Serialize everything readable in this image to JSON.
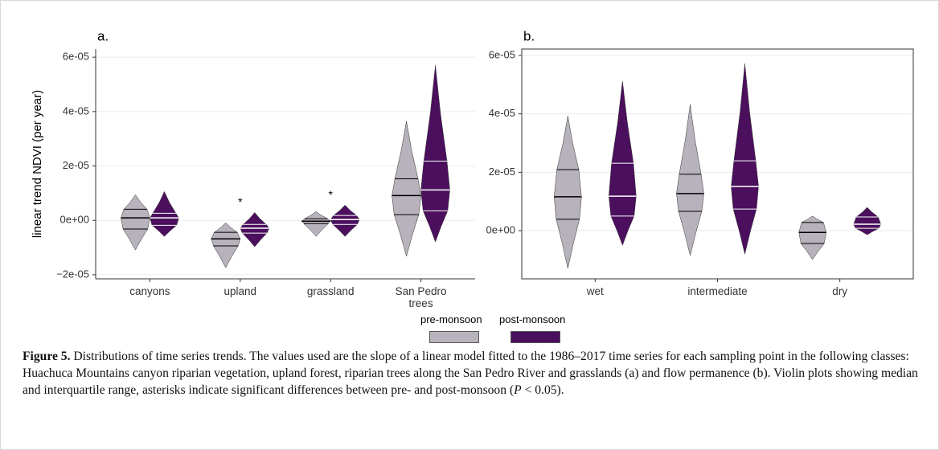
{
  "chart_data": [
    {
      "type": "violin",
      "label": "a.",
      "ylabel": "linear trend NDVI (per year)",
      "categories": [
        "canyons",
        "upland",
        "grassland",
        "San Pedro\ntrees"
      ],
      "series": [
        {
          "name": "pre-monsoon",
          "color": "#b7b2bb",
          "line_color": "#000000",
          "min": [
            -1.09e-05,
            -1.74e-05,
            -5.9e-06,
            -1.32e-05
          ],
          "q1": [
            -3.2e-06,
            -9.4e-06,
            -1.2e-06,
            2.1e-06
          ],
          "median": [
            9e-07,
            -6.8e-06,
            -3e-07,
            9.1e-06
          ],
          "q3": [
            4.1e-06,
            -4.4e-06,
            6e-07,
            1.53e-05
          ],
          "max": [
            9.4e-06,
            -9e-07,
            3.2e-06,
            3.65e-05
          ]
        },
        {
          "name": "post-monsoon",
          "color": "#4b0f5e",
          "line_color": "#ffffff",
          "min": [
            -5.9e-06,
            -9.7e-06,
            -5.9e-06,
            -7.9e-06
          ],
          "q1": [
            -1.8e-06,
            -4.7e-06,
            -1.5e-06,
            3.5e-06
          ],
          "median": [
            9e-07,
            -2.9e-06,
            3e-07,
            1.12e-05
          ],
          "q3": [
            2.6e-06,
            -1.5e-06,
            1.8e-06,
            2.18e-05
          ],
          "max": [
            1.06e-05,
            2.9e-06,
            5.6e-06,
            5.7e-05
          ]
        }
      ],
      "annotations": [
        {
          "text": "*",
          "category": "upland"
        },
        {
          "text": "*",
          "category": "grassland"
        }
      ],
      "ylim": [
        -2.15e-05,
        6.3e-05
      ],
      "yticks": [
        {
          "value": -2e-05,
          "label": "−2e-05"
        },
        {
          "value": 0,
          "label": "0e+00"
        },
        {
          "value": 2e-05,
          "label": "2e-05"
        },
        {
          "value": 4e-05,
          "label": "4e-05"
        },
        {
          "value": 6e-05,
          "label": "6e-05"
        }
      ],
      "grid": true,
      "frame": false
    },
    {
      "type": "violin",
      "label": "b.",
      "categories": [
        "wet",
        "intermediate",
        "dry"
      ],
      "series": [
        {
          "name": "pre-monsoon",
          "color": "#b7b2bb",
          "line_color": "#000000",
          "min": [
            -1.29e-05,
            -8.5e-06,
            -9.9e-06
          ],
          "q1": [
            3.9e-06,
            6.6e-06,
            -4.4e-06
          ],
          "median": [
            1.16e-05,
            1.27e-05,
            -6e-07
          ],
          "q3": [
            2.09e-05,
            1.93e-05,
            2.8e-06
          ],
          "max": [
            3.93e-05,
            4.32e-05,
            5e-06
          ]
        },
        {
          "name": "post-monsoon",
          "color": "#4b0f5e",
          "line_color": "#ffffff",
          "min": [
            -5e-06,
            -8e-06,
            -1.4e-06
          ],
          "q1": [
            5e-06,
            7.4e-06,
            8e-07
          ],
          "median": [
            1.18e-05,
            1.51e-05,
            2.2e-06
          ],
          "q3": [
            2.31e-05,
            2.39e-05,
            4.7e-06
          ],
          "max": [
            5.12e-05,
            5.72e-05,
            8e-06
          ]
        }
      ],
      "ylim": [
        -1.65e-05,
        6.22e-05
      ],
      "yticks": [
        {
          "value": 0,
          "label": "0e+00"
        },
        {
          "value": 2e-05,
          "label": "2e-05"
        },
        {
          "value": 4e-05,
          "label": "4e-05"
        },
        {
          "value": 6e-05,
          "label": "6e-05"
        }
      ],
      "grid": true,
      "frame": true
    }
  ],
  "caption": {
    "label": "Figure 5.",
    "text_1": "Distributions of time series trends. The values used are the slope of a linear model fitted to the 1986–2017 time series for each sampling point in the following classes: Huachuca Mountains canyon riparian vegetation, upland forest, riparian trees along the San Pedro River and grasslands (a) and flow permanence (b). Violin plots showing median and interquartile range, asterisks indicate significant differences between pre- and post-monsoon (",
    "italic": "P",
    "text_2": " < 0.05)."
  }
}
